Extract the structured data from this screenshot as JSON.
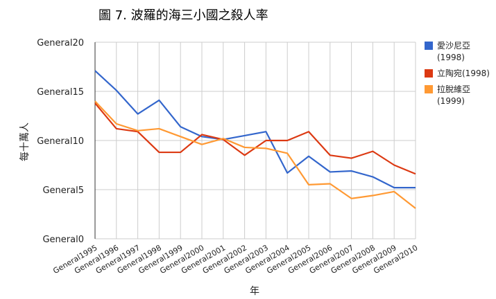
{
  "chart_data": {
    "type": "line",
    "title": "圖 7. 波羅的海三小國之殺人率",
    "xlabel": "年",
    "ylabel": "每十萬人",
    "ylim": [
      0,
      20
    ],
    "yticks": [
      "General0",
      "General5",
      "General10",
      "General15",
      "General20"
    ],
    "ytick_values": [
      0,
      5,
      10,
      15,
      20
    ],
    "categories": [
      "General1995",
      "General1996",
      "General1997",
      "General1998",
      "General1999",
      "General2000",
      "General2001",
      "General2002",
      "General2003",
      "General2004",
      "General2005",
      "General2006",
      "General2007",
      "General2008",
      "General2009",
      "General2010"
    ],
    "grid": true,
    "legend": "right",
    "series": [
      {
        "name": "愛沙尼亞(1998)",
        "legend_lines": [
          "愛沙尼亞",
          "(1998)"
        ],
        "color": "#3366cc",
        "values": [
          17.1,
          15.1,
          12.7,
          14.1,
          11.4,
          10.4,
          10.1,
          10.5,
          10.9,
          6.7,
          8.4,
          6.8,
          6.9,
          6.3,
          5.2,
          5.2
        ]
      },
      {
        "name": "立陶宛(1998)",
        "legend_lines": [
          "立陶宛(1998)"
        ],
        "color": "#dc3912",
        "values": [
          13.8,
          11.2,
          10.9,
          8.8,
          8.8,
          10.6,
          10.1,
          8.5,
          10.0,
          10.0,
          10.9,
          8.5,
          8.2,
          8.9,
          7.5,
          6.6
        ]
      },
      {
        "name": "拉脫維亞(1999)",
        "legend_lines": [
          "拉脫維亞",
          "(1999)"
        ],
        "color": "#ff9933",
        "values": [
          14.0,
          11.7,
          11.0,
          11.2,
          10.4,
          9.6,
          10.2,
          9.3,
          9.2,
          8.7,
          5.5,
          5.6,
          4.1,
          4.4,
          4.8,
          3.1
        ]
      }
    ]
  }
}
